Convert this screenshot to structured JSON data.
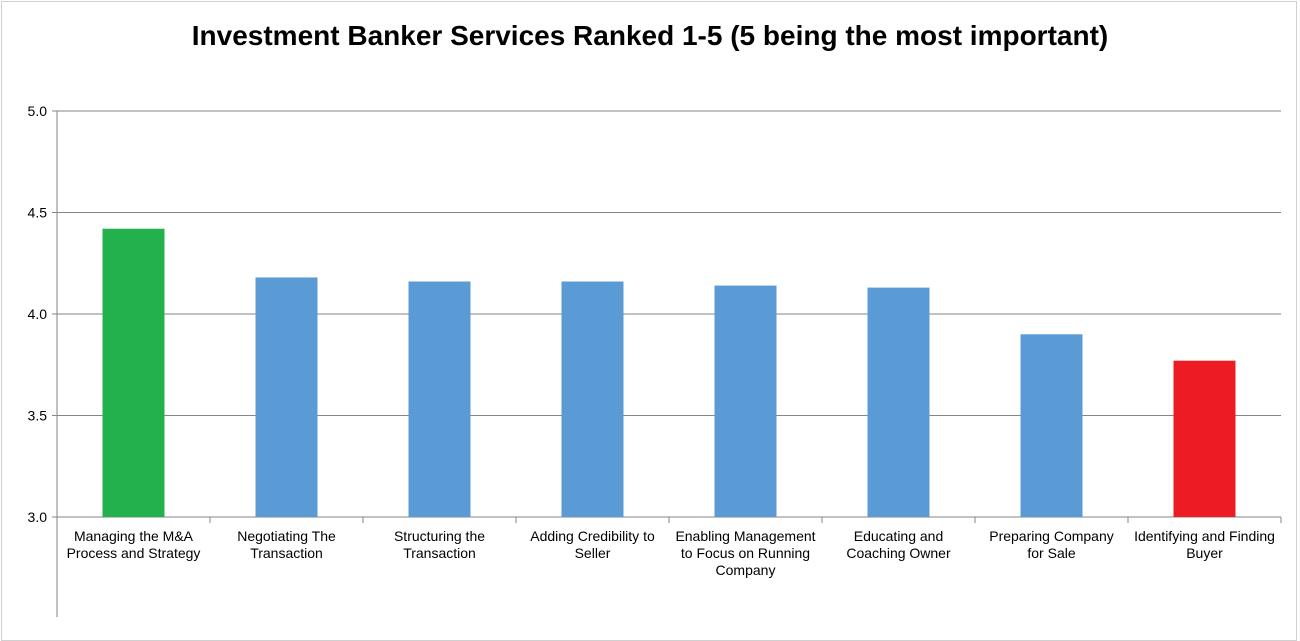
{
  "chart_data": {
    "type": "bar",
    "title": "Investment Banker Services Ranked 1-5 (5 being the most important)",
    "xlabel": "",
    "ylabel": "",
    "ylim": [
      3.0,
      5.0
    ],
    "yticks": [
      "3.0",
      "3.5",
      "4.0",
      "4.5",
      "5.0"
    ],
    "grid": true,
    "legend": "none",
    "categories": [
      "Managing the M&A Process and Strategy",
      "Negotiating The Transaction",
      "Structuring the Transaction",
      "Adding Credibility to Seller",
      "Enabling Management to Focus on Running Company",
      "Educating and Coaching Owner",
      "Preparing Company for Sale",
      "Identifying and Finding Buyer"
    ],
    "values": [
      4.42,
      4.18,
      4.16,
      4.16,
      4.14,
      4.13,
      3.9,
      3.77
    ],
    "colors": [
      "#22b14c",
      "#5b9bd5",
      "#5b9bd5",
      "#5b9bd5",
      "#5b9bd5",
      "#5b9bd5",
      "#5b9bd5",
      "#ed1c24"
    ]
  }
}
